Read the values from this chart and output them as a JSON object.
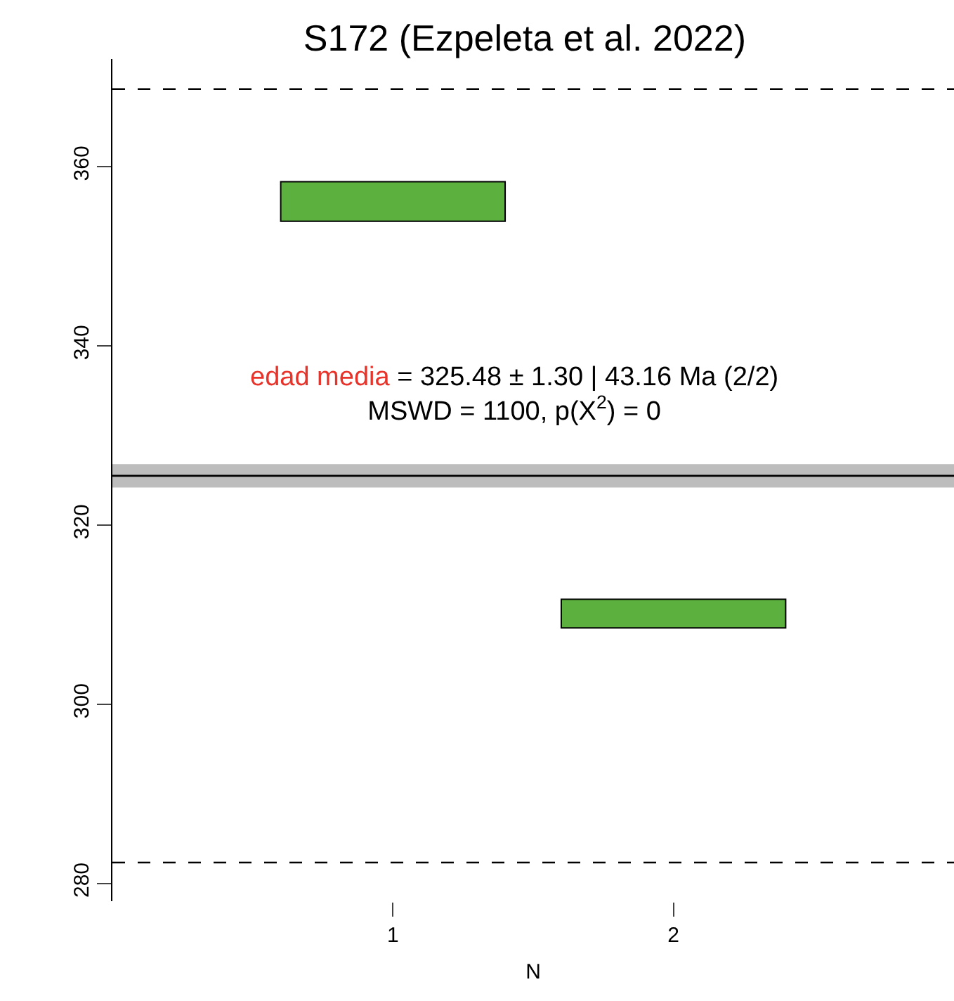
{
  "chart_data": {
    "type": "bar",
    "title": "S172 (Ezpeleta et al. 2022)",
    "xlabel": "N",
    "categories": [
      "1",
      "2"
    ],
    "values": [
      4.4,
      3.2
    ],
    "base": [
      353.9,
      308.5
    ],
    "color": "#5bb03e",
    "ylim": [
      278,
      372
    ],
    "yticks": [
      280,
      300,
      320,
      340,
      360
    ],
    "grid": false,
    "ref_lines": [
      {
        "axis": "y",
        "value": 325.48,
        "color": "#000000",
        "line_style": "solid"
      },
      {
        "axis": "y",
        "value": 368.64,
        "color": "#000000",
        "line_style": "dashed"
      },
      {
        "axis": "y",
        "value": 282.32,
        "color": "#000000",
        "line_style": "dashed"
      }
    ],
    "bands": [
      {
        "axis": "y",
        "from": 324.18,
        "to": 326.78,
        "color": "#bdbdbd"
      }
    ],
    "annotations": [
      "edad media",
      "= 325.48 ± 1.30 | 43.16 Ma (2/2)",
      "MSWD = 1100, p(X$^{2}$) = 0"
    ]
  }
}
